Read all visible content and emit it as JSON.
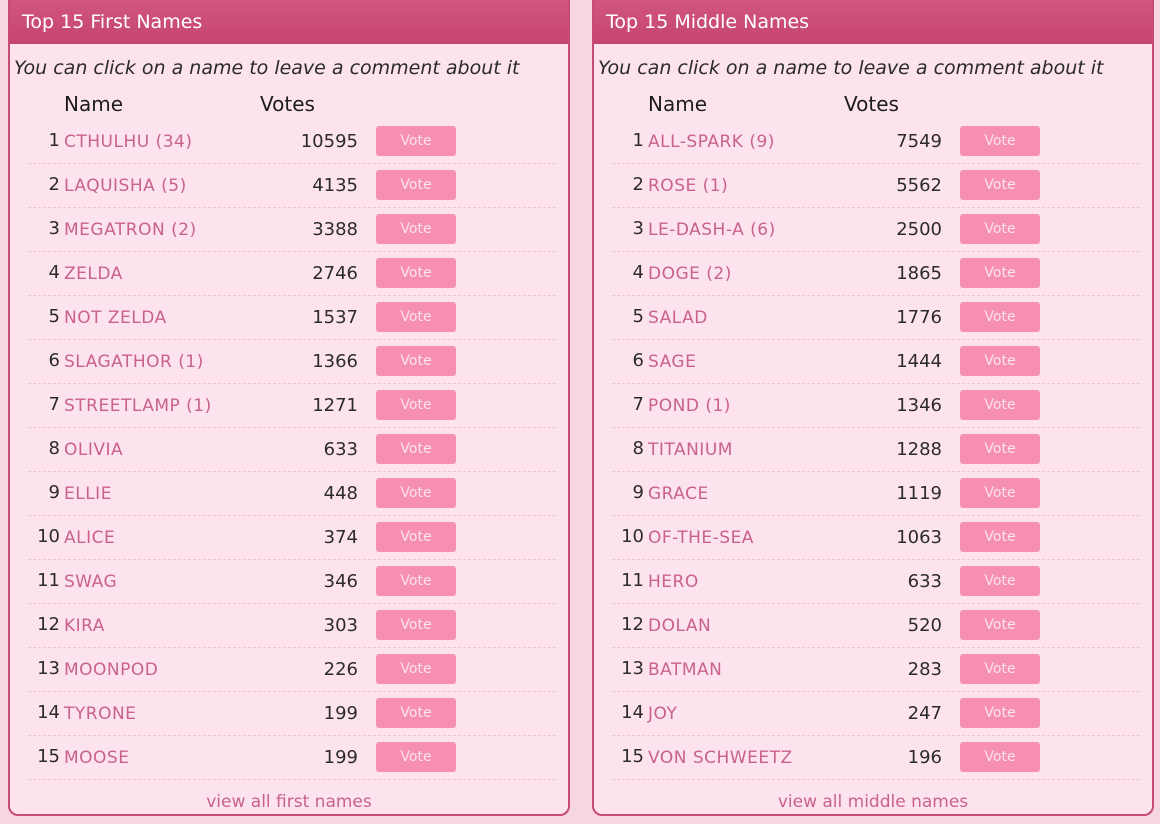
{
  "first_names": {
    "title": "Top 15 First Names",
    "hint": "You can click on a name to leave a comment about it",
    "col_name": "Name",
    "col_votes": "Votes",
    "vote_label": "Vote",
    "view_all": "view all first names",
    "rows": [
      {
        "rank": "1",
        "name": "CTHULHU (34)",
        "votes": "10595"
      },
      {
        "rank": "2",
        "name": "LAQUISHA (5)",
        "votes": "4135"
      },
      {
        "rank": "3",
        "name": "MEGATRON (2)",
        "votes": "3388"
      },
      {
        "rank": "4",
        "name": "ZELDA",
        "votes": "2746"
      },
      {
        "rank": "5",
        "name": "NOT ZELDA",
        "votes": "1537"
      },
      {
        "rank": "6",
        "name": "SLAGATHOR (1)",
        "votes": "1366"
      },
      {
        "rank": "7",
        "name": "STREETLAMP (1)",
        "votes": "1271"
      },
      {
        "rank": "8",
        "name": "OLIVIA",
        "votes": "633"
      },
      {
        "rank": "9",
        "name": "ELLIE",
        "votes": "448"
      },
      {
        "rank": "10",
        "name": "ALICE",
        "votes": "374"
      },
      {
        "rank": "11",
        "name": "SWAG",
        "votes": "346"
      },
      {
        "rank": "12",
        "name": "KIRA",
        "votes": "303"
      },
      {
        "rank": "13",
        "name": "MOONPOD",
        "votes": "226"
      },
      {
        "rank": "14",
        "name": "TYRONE",
        "votes": "199"
      },
      {
        "rank": "15",
        "name": "MOOSE",
        "votes": "199"
      }
    ]
  },
  "middle_names": {
    "title": "Top 15 Middle Names",
    "hint": "You can click on a name to leave a comment about it",
    "col_name": "Name",
    "col_votes": "Votes",
    "vote_label": "Vote",
    "view_all": "view all middle names",
    "rows": [
      {
        "rank": "1",
        "name": "ALL-SPARK (9)",
        "votes": "7549"
      },
      {
        "rank": "2",
        "name": "ROSE (1)",
        "votes": "5562"
      },
      {
        "rank": "3",
        "name": "LE-DASH-A (6)",
        "votes": "2500"
      },
      {
        "rank": "4",
        "name": "DOGE (2)",
        "votes": "1865"
      },
      {
        "rank": "5",
        "name": "SALAD",
        "votes": "1776"
      },
      {
        "rank": "6",
        "name": "SAGE",
        "votes": "1444"
      },
      {
        "rank": "7",
        "name": "POND (1)",
        "votes": "1346"
      },
      {
        "rank": "8",
        "name": "TITANIUM",
        "votes": "1288"
      },
      {
        "rank": "9",
        "name": "GRACE",
        "votes": "1119"
      },
      {
        "rank": "10",
        "name": "OF-THE-SEA",
        "votes": "1063"
      },
      {
        "rank": "11",
        "name": "HERO",
        "votes": "633"
      },
      {
        "rank": "12",
        "name": "DOLAN",
        "votes": "520"
      },
      {
        "rank": "13",
        "name": "BATMAN",
        "votes": "283"
      },
      {
        "rank": "14",
        "name": "JOY",
        "votes": "247"
      },
      {
        "rank": "15",
        "name": "VON SCHWEETZ",
        "votes": "196"
      }
    ]
  },
  "colors": {
    "header": "#c84a76",
    "panel_bg": "#fde3ee",
    "link": "#c8628d",
    "vote_button": "#f78fb4"
  }
}
